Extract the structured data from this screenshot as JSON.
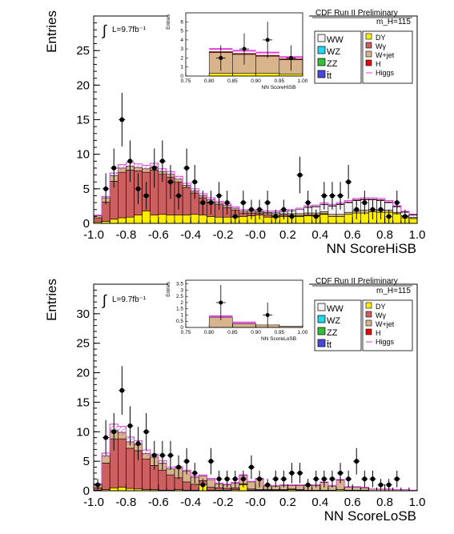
{
  "chart_data": [
    {
      "type": "bar",
      "stacked": true,
      "banner": "CDF Run II Preliminary",
      "mass_label": "m_H=115",
      "lumi_label": "L=9.7fb⁻¹",
      "xlabel": "NN ScoreHiSB",
      "ylabel": "Entries",
      "xlim": [
        -1.0,
        1.0
      ],
      "ylim": [
        0,
        30
      ],
      "xticks": [
        "-1.0",
        "-0.8",
        "-0.6",
        "-0.4",
        "-0.2",
        "-0.0",
        "0.2",
        "0.4",
        "0.6",
        "0.8",
        "1.0"
      ],
      "yticks": [
        "0",
        "5",
        "10",
        "15",
        "20",
        "25"
      ],
      "bin_edges_start": -1.0,
      "bin_width": 0.05,
      "legend_left": [
        {
          "label": "WW",
          "color": "#f4f4f4"
        },
        {
          "label": "WZ",
          "color": "#22d8ee"
        },
        {
          "label": "ZZ",
          "color": "#36c036"
        },
        {
          "label": "t̄t",
          "color": "#4848e0"
        }
      ],
      "legend_right": [
        {
          "label": "DY",
          "color": "#ffee00"
        },
        {
          "label": "Wγ",
          "color": "#cc6060"
        },
        {
          "label": "W+jet",
          "color": "#d8b48c"
        },
        {
          "label": "H",
          "color": "#ee0000"
        },
        {
          "label": "Higgs",
          "color": "#e040e0"
        }
      ],
      "series": [
        {
          "name": "DY",
          "color": "#ffee00",
          "values": [
            0.2,
            0.3,
            0.6,
            0.8,
            0.9,
            1.2,
            1.8,
            1.2,
            1.3,
            1.2,
            1.2,
            1.2,
            1.3,
            1.2,
            1.0,
            0.9,
            0.9,
            0.9,
            1.0,
            1.1,
            1.2,
            0.9,
            0.9,
            1.0,
            1.0,
            1.0,
            1.1,
            1.1,
            1.3,
            1.0,
            1.0,
            1.3,
            1.5,
            1.5,
            1.7,
            1.6,
            1.6,
            1.4,
            0.8,
            0.7
          ]
        },
        {
          "name": "Wγ",
          "color": "#cc6060",
          "values": [
            0.6,
            2.8,
            5.5,
            6.6,
            6.8,
            6.4,
            5.6,
            6.5,
            5.8,
            5.5,
            4.8,
            4.0,
            3.1,
            2.5,
            2.1,
            1.8,
            1.4,
            1.0,
            0.5,
            0.4,
            0.3,
            0.3,
            0.2,
            0.2,
            0.1,
            0.1,
            0.1,
            0.1,
            0.1,
            0.0,
            0.0,
            0.0,
            0.0,
            0.0,
            0.0,
            0.0,
            0.0,
            0.0,
            0.0,
            0.0
          ]
        },
        {
          "name": "W+jet",
          "color": "#d8b48c",
          "values": [
            0.3,
            0.6,
            0.8,
            0.6,
            0.6,
            0.5,
            0.5,
            0.5,
            0.4,
            0.4,
            0.4,
            0.3,
            0.3,
            0.3,
            0.3,
            0.3,
            0.3,
            0.3,
            0.3,
            0.3,
            0.2,
            0.3,
            0.3,
            0.2,
            0.3,
            0.3,
            0.3,
            0.3,
            0.3,
            0.3,
            0.3,
            0.3,
            0.3,
            0.4,
            0.3,
            0.3,
            0.3,
            0.2,
            0.3,
            0.2
          ]
        },
        {
          "name": "WW",
          "color": "#f4f4f4",
          "values": [
            0.0,
            0.0,
            0.0,
            0.0,
            0.0,
            0.0,
            0.0,
            0.0,
            0.0,
            0.0,
            0.0,
            0.0,
            0.0,
            0.0,
            0.0,
            0.0,
            0.0,
            0.0,
            0.0,
            0.0,
            0.0,
            0.1,
            0.2,
            0.3,
            0.4,
            0.6,
            0.8,
            0.9,
            1.0,
            1.2,
            1.4,
            1.4,
            1.5,
            1.5,
            1.4,
            1.4,
            1.1,
            0.8,
            0.5,
            0.3
          ]
        },
        {
          "name": "H",
          "color": "#ee0000",
          "values": [
            0.0,
            0.0,
            0.0,
            0.0,
            0.0,
            0.0,
            0.0,
            0.0,
            0.0,
            0.0,
            0.0,
            0.0,
            0.0,
            0.0,
            0.0,
            0.0,
            0.0,
            0.0,
            0.0,
            0.0,
            0.0,
            0.0,
            0.0,
            0.0,
            0.0,
            0.0,
            0.05,
            0.05,
            0.05,
            0.05,
            0.1,
            0.1,
            0.1,
            0.1,
            0.1,
            0.1,
            0.1,
            0.05,
            0.05,
            0.05
          ]
        },
        {
          "name": "Higgs",
          "color": "#e040e0",
          "values": [
            0.1,
            0.2,
            0.4,
            0.5,
            0.5,
            0.5,
            0.5,
            0.5,
            0.4,
            0.4,
            0.4,
            0.3,
            0.3,
            0.3,
            0.3,
            0.2,
            0.2,
            0.2,
            0.2,
            0.2,
            0.2,
            0.2,
            0.2,
            0.2,
            0.2,
            0.2,
            0.2,
            0.2,
            0.2,
            0.2,
            0.2,
            0.2,
            0.2,
            0.2,
            0.2,
            0.2,
            0.2,
            0.1,
            0.1,
            0.1
          ]
        }
      ],
      "data_points": {
        "x": [
          -0.925,
          -0.875,
          -0.825,
          -0.775,
          -0.725,
          -0.675,
          -0.625,
          -0.575,
          -0.525,
          -0.475,
          -0.425,
          -0.375,
          -0.325,
          -0.275,
          -0.225,
          -0.175,
          -0.125,
          -0.075,
          -0.025,
          0.025,
          0.075,
          0.125,
          0.175,
          0.225,
          0.275,
          0.325,
          0.375,
          0.425,
          0.475,
          0.525,
          0.575,
          0.625,
          0.675,
          0.725,
          0.775,
          0.825,
          0.875,
          0.925
        ],
        "y": [
          5,
          8,
          15,
          9,
          5,
          4,
          8,
          9,
          6,
          4,
          8,
          6,
          3,
          3,
          4,
          3,
          1,
          3,
          2,
          2,
          3,
          1,
          2,
          1,
          7,
          3,
          1,
          4,
          4,
          4,
          6,
          2,
          3,
          2,
          2,
          1,
          3,
          1
        ]
      },
      "inset": {
        "xlabel": "NN ScoreHiSB",
        "ylabel": "Entries",
        "xlim": [
          0.75,
          1.0
        ],
        "ylim": [
          0,
          7
        ],
        "xticks": [
          "0.75",
          "0.80",
          "0.85",
          "0.90",
          "0.95",
          "1.00"
        ],
        "yticks": [
          "0",
          "1",
          "2",
          "3",
          "4",
          "5",
          "6"
        ],
        "bin_edges_start": 0.75,
        "bin_width": 0.05,
        "series": [
          {
            "name": "DY",
            "color": "#ffee00",
            "values": [
              0.0,
              0.3,
              0.3,
              0.3,
              0.2
            ]
          },
          {
            "name": "W+jet",
            "color": "#d8b48c",
            "values": [
              0.0,
              2.3,
              2.1,
              1.9,
              1.6
            ]
          },
          {
            "name": "H",
            "color": "#ee0000",
            "values": [
              0.0,
              0.1,
              0.1,
              0.1,
              0.1
            ]
          },
          {
            "name": "Higgs",
            "color": "#e040e0",
            "values": [
              0.0,
              0.3,
              0.3,
              0.3,
              0.2
            ]
          }
        ],
        "data_points": {
          "x": [
            0.825,
            0.875,
            0.925,
            0.975
          ],
          "y": [
            2,
            3,
            4,
            2
          ]
        }
      }
    },
    {
      "type": "bar",
      "stacked": true,
      "banner": "CDF Run II Preliminary",
      "mass_label": "m_H=115",
      "lumi_label": "L=9.7fb⁻¹",
      "xlabel": "NN ScoreLoSB",
      "ylabel": "Entries",
      "xlim": [
        -1.0,
        1.0
      ],
      "ylim": [
        0,
        35
      ],
      "xticks": [
        "-1.0",
        "-0.8",
        "-0.6",
        "-0.4",
        "-0.2",
        "-0.0",
        "0.2",
        "0.4",
        "0.6",
        "0.8",
        "1.0"
      ],
      "yticks": [
        "0",
        "5",
        "10",
        "15",
        "20",
        "25",
        "30"
      ],
      "bin_edges_start": -1.0,
      "bin_width": 0.05,
      "legend_left": [
        {
          "label": "WW",
          "color": "#f4f4f4"
        },
        {
          "label": "WZ",
          "color": "#22d8ee"
        },
        {
          "label": "ZZ",
          "color": "#36c036"
        },
        {
          "label": "t̄t",
          "color": "#4848e0"
        }
      ],
      "legend_right": [
        {
          "label": "DY",
          "color": "#ffee00"
        },
        {
          "label": "Wγ",
          "color": "#cc6060"
        },
        {
          "label": "W+jet",
          "color": "#d8b48c"
        },
        {
          "label": "H",
          "color": "#ee0000"
        },
        {
          "label": "Higgs",
          "color": "#e040e0"
        }
      ],
      "series": [
        {
          "name": "DY",
          "color": "#ffee00",
          "values": [
            0.1,
            0.2,
            0.5,
            0.6,
            0.4,
            0.3,
            0.2,
            0.2,
            0.1,
            0.1,
            0.2,
            0.1,
            0.1,
            1.0,
            0.1,
            0.1,
            0.1,
            0.2,
            1.0,
            0.1,
            0.1,
            0.1,
            0.1,
            0.1,
            0.2,
            0.1,
            0.1,
            0.1,
            0.1,
            0.1,
            0.2,
            0.1,
            0.1,
            0.1,
            0.0,
            0.0,
            0.0,
            0.0,
            0.0,
            0.0
          ]
        },
        {
          "name": "Wγ",
          "color": "#cc6060",
          "values": [
            0.4,
            4.5,
            8.3,
            8.2,
            6.8,
            6.5,
            5.2,
            4.1,
            3.4,
            2.6,
            2.0,
            1.4,
            1.0,
            0.7,
            0.5,
            0.4,
            0.3,
            0.3,
            0.2,
            0.2,
            0.1,
            0.1,
            0.1,
            0.1,
            0.1,
            0.1,
            0.0,
            0.0,
            0.0,
            0.0,
            0.0,
            0.0,
            0.0,
            0.0,
            0.0,
            0.0,
            0.0,
            0.0,
            0.0,
            0.0
          ]
        },
        {
          "name": "W+jet",
          "color": "#d8b48c",
          "values": [
            0.6,
            1.2,
            1.5,
            1.1,
            1.1,
            1.0,
            0.9,
            1.4,
            1.2,
            1.0,
            1.6,
            1.8,
            1.2,
            0.8,
            1.3,
            0.7,
            0.6,
            0.8,
            1.4,
            1.2,
            1.8,
            0.6,
            0.6,
            0.7,
            0.6,
            0.7,
            0.8,
            0.8,
            1.3,
            0.7,
            1.6,
            0.5,
            0.5,
            0.4,
            0.3,
            0.3,
            0.3,
            0.2,
            0.2,
            0.1
          ]
        },
        {
          "name": "WW",
          "color": "#f4f4f4",
          "values": [
            0.0,
            0.0,
            0.0,
            0.0,
            0.0,
            0.0,
            0.0,
            0.0,
            0.0,
            0.0,
            0.0,
            0.0,
            0.0,
            0.0,
            0.0,
            0.0,
            0.0,
            0.0,
            0.0,
            0.0,
            0.0,
            0.0,
            0.0,
            0.0,
            0.0,
            0.0,
            0.0,
            0.0,
            0.0,
            0.0,
            0.0,
            0.0,
            0.0,
            0.0,
            0.0,
            0.0,
            0.0,
            0.0,
            0.0,
            0.0
          ]
        },
        {
          "name": "H",
          "color": "#ee0000",
          "values": [
            0.0,
            0.0,
            0.0,
            0.0,
            0.0,
            0.0,
            0.0,
            0.0,
            0.0,
            0.0,
            0.0,
            0.0,
            0.0,
            0.0,
            0.0,
            0.0,
            0.0,
            0.0,
            0.0,
            0.0,
            0.0,
            0.0,
            0.0,
            0.0,
            0.0,
            0.0,
            0.0,
            0.0,
            0.0,
            0.0,
            0.0,
            0.0,
            0.0,
            0.0,
            0.0,
            0.0,
            0.0,
            0.0,
            0.0,
            0.0
          ]
        },
        {
          "name": "Higgs",
          "color": "#e040e0",
          "values": [
            0.1,
            0.5,
            1.0,
            1.0,
            0.8,
            0.7,
            0.6,
            0.5,
            0.4,
            0.3,
            0.3,
            0.2,
            0.2,
            0.2,
            0.2,
            0.1,
            0.1,
            0.1,
            0.1,
            0.1,
            0.1,
            0.1,
            0.1,
            0.1,
            0.1,
            0.1,
            0.1,
            0.1,
            0.1,
            0.1,
            0.1,
            0.1,
            0.1,
            0.1,
            0.0,
            0.0,
            0.0,
            0.0,
            0.0,
            0.0
          ]
        }
      ],
      "data_points": {
        "x": [
          -0.975,
          -0.925,
          -0.875,
          -0.825,
          -0.775,
          -0.725,
          -0.675,
          -0.625,
          -0.575,
          -0.525,
          -0.475,
          -0.425,
          -0.375,
          -0.325,
          -0.275,
          -0.225,
          -0.175,
          -0.125,
          -0.075,
          -0.025,
          0.025,
          0.075,
          0.125,
          0.175,
          0.225,
          0.275,
          0.325,
          0.375,
          0.425,
          0.475,
          0.525,
          0.575,
          0.625,
          0.675,
          0.725,
          0.775,
          0.825,
          0.875
        ],
        "y": [
          1,
          9,
          10,
          17,
          11,
          8,
          10,
          6,
          6,
          6,
          4,
          5,
          3,
          1,
          5,
          2,
          2,
          2,
          2,
          4,
          2,
          1,
          2,
          2,
          3,
          3,
          1,
          2,
          2,
          2,
          3,
          2,
          5,
          2,
          2,
          1,
          1,
          2
        ]
      },
      "inset": {
        "xlabel": "NN ScoreLoSB",
        "ylabel": "Entries",
        "xlim": [
          0.75,
          1.0
        ],
        "ylim": [
          0,
          3.8
        ],
        "xticks": [
          "0.75",
          "0.80",
          "0.85",
          "0.90",
          "0.95",
          "1.00"
        ],
        "yticks": [
          "0",
          "0.5",
          "1",
          "1.5",
          "2",
          "2.5",
          "3",
          "3.5"
        ],
        "bin_edges_start": 0.75,
        "bin_width": 0.05,
        "series": [
          {
            "name": "W+jet",
            "color": "#d8b48c",
            "values": [
              0.0,
              0.8,
              0.3,
              0.2,
              0.1
            ]
          },
          {
            "name": "Higgs",
            "color": "#e040e0",
            "values": [
              0.0,
              0.1,
              0.1,
              0.0,
              0.0
            ]
          }
        ],
        "data_points": {
          "x": [
            0.825,
            0.925
          ],
          "y": [
            2,
            1
          ]
        }
      }
    }
  ]
}
